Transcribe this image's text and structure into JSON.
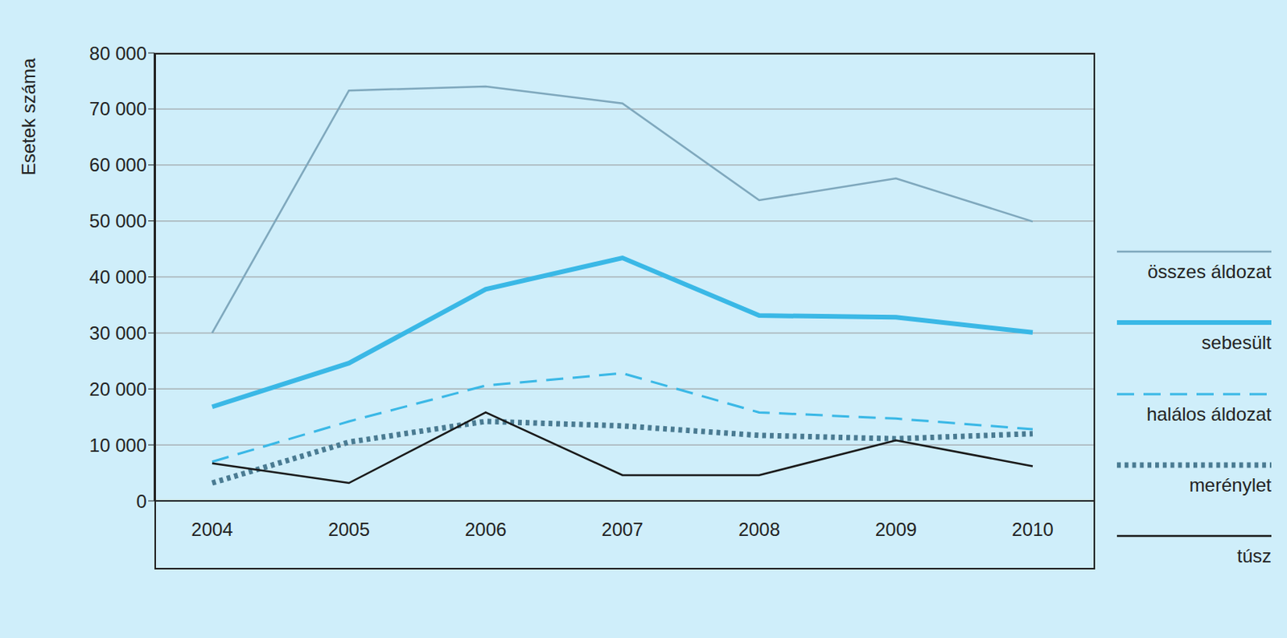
{
  "chart_data": {
    "type": "line",
    "y_label": "Esetek száma",
    "categories": [
      "2004",
      "2005",
      "2006",
      "2007",
      "2008",
      "2009",
      "2010"
    ],
    "series": [
      {
        "name": "összes áldozat",
        "color": "#7fa8bd",
        "line_style": "solid",
        "values": [
          30000,
          73300,
          74000,
          71000,
          53700,
          57600,
          49900
        ]
      },
      {
        "name": "sebesült",
        "color": "#3ab8e6",
        "line_style": "solid",
        "values": [
          16800,
          24600,
          37800,
          43400,
          33100,
          32800,
          30100
        ]
      },
      {
        "name": "halálos áldozat",
        "color": "#3ab8e6",
        "line_style": "dashed",
        "values": [
          7000,
          14200,
          20600,
          22800,
          15800,
          14700,
          12800
        ]
      },
      {
        "name": "merénylet",
        "color": "#4a7b92",
        "line_style": "dotted",
        "values": [
          3200,
          10500,
          14200,
          13400,
          11700,
          11100,
          12000
        ]
      },
      {
        "name": "túsz",
        "color": "#1a1a1a",
        "line_style": "solid",
        "values": [
          6700,
          3200,
          15800,
          4600,
          4600,
          10800,
          6200
        ]
      }
    ],
    "ylim": [
      0,
      80000
    ],
    "yticks": [
      {
        "value": 0,
        "label": "0"
      },
      {
        "value": 10000,
        "label": "10 000"
      },
      {
        "value": 20000,
        "label": "20 000"
      },
      {
        "value": 30000,
        "label": "30 000"
      },
      {
        "value": 40000,
        "label": "40 000"
      },
      {
        "value": 50000,
        "label": "50 000"
      },
      {
        "value": 60000,
        "label": "60 000"
      },
      {
        "value": 70000,
        "label": "70 000"
      },
      {
        "value": 80000,
        "label": "80 000"
      }
    ],
    "grid": true,
    "legend": "right"
  }
}
